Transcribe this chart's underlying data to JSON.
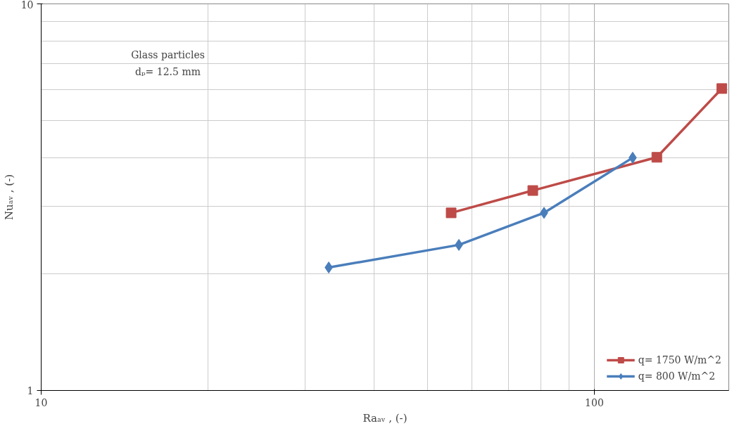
{
  "chart_data": {
    "type": "line",
    "xlabel": "Raₐᵥ , (-)",
    "ylabel": "Nuₐᵥ , (-)",
    "annotations": [
      "Glass particles",
      "dₚ= 12.5 mm"
    ],
    "log": "xy",
    "xlim": [
      10,
      175
    ],
    "ylim": [
      1,
      10
    ],
    "xticks": [
      10,
      100
    ],
    "yticks": [
      1,
      10
    ],
    "grid": true,
    "legend": "bottom right",
    "line_style": "solid",
    "series": [
      {
        "name": "q= 1750 W/m^2",
        "color": "#be4b48",
        "marker": "square",
        "x": [
          55.1,
          77.4,
          129.7,
          170
        ],
        "values": [
          2.88,
          3.29,
          4.01,
          6.04
        ]
      },
      {
        "name": "q= 800 W/m^2",
        "color": "#4a7ebb",
        "marker": "diamond",
        "x": [
          33.1,
          56.9,
          81.1,
          117.3
        ],
        "values": [
          2.08,
          2.38,
          2.88,
          4.0
        ]
      }
    ]
  }
}
